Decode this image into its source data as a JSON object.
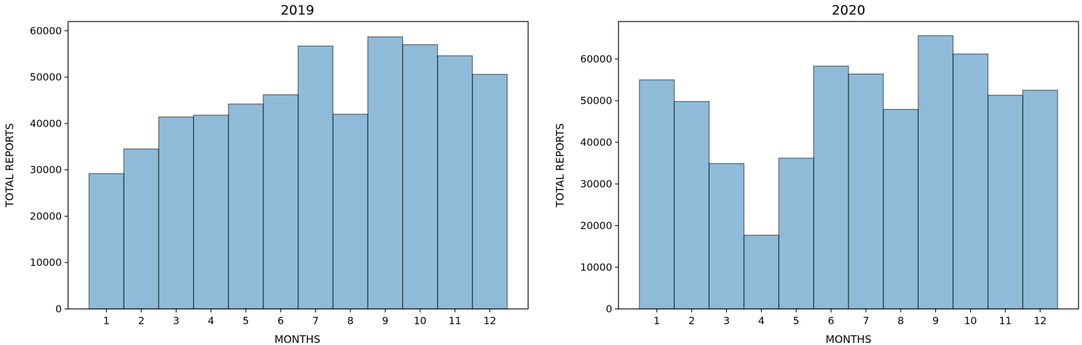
{
  "chart_data": [
    {
      "type": "bar",
      "title": "2019",
      "xlabel": "MONTHS",
      "ylabel": "TOTAL REPORTS",
      "categories": [
        "1",
        "2",
        "3",
        "4",
        "5",
        "6",
        "7",
        "8",
        "9",
        "10",
        "11",
        "12"
      ],
      "values": [
        29200,
        34500,
        41400,
        41800,
        44200,
        46200,
        56700,
        42000,
        58700,
        57000,
        54600,
        50600
      ],
      "ylim": [
        0,
        62000
      ],
      "yticks": [
        0,
        10000,
        20000,
        30000,
        40000,
        50000,
        60000
      ],
      "color": "#1f77b4",
      "grid": false
    },
    {
      "type": "bar",
      "title": "2020",
      "xlabel": "MONTHS",
      "ylabel": "TOTAL REPORTS",
      "categories": [
        "1",
        "2",
        "3",
        "4",
        "5",
        "6",
        "7",
        "8",
        "9",
        "10",
        "11",
        "12"
      ],
      "values": [
        55000,
        49800,
        34900,
        17700,
        36200,
        58300,
        56400,
        47900,
        65600,
        61200,
        51300,
        52500
      ],
      "ylim": [
        0,
        69000
      ],
      "yticks": [
        0,
        10000,
        20000,
        30000,
        40000,
        50000,
        60000
      ],
      "color": "#1f77b4",
      "grid": false
    }
  ]
}
